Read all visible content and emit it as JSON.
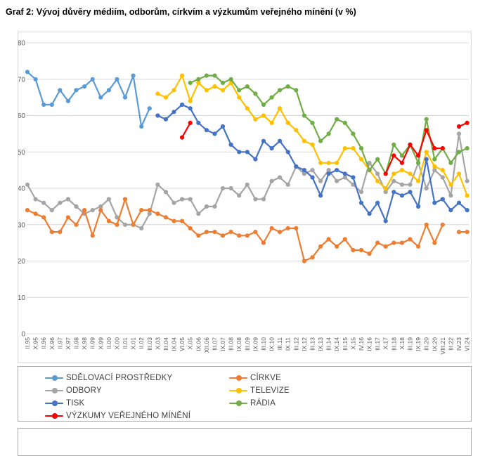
{
  "title": "Graf 2: Vývoj důvěry médiím, odborům, církvím a výzkumům veřejného mínění (v %)",
  "chart_data": {
    "type": "line",
    "title": "Graf 2: Vývoj důvěry médiím, odborům, církvím a výzkumům veřejného mínění (v %)",
    "xlabel": "",
    "ylabel": "",
    "ylim": [
      0,
      80
    ],
    "ytick_step": 10,
    "grid": true,
    "legend_position": "bottom",
    "marker": "circle",
    "categories": [
      "II.95",
      "X.95",
      "II.96",
      "X.96",
      "II.97",
      "X.97",
      "II.98",
      "X.98",
      "II.99",
      "X.99",
      "II.00",
      "X.00",
      "II.01",
      "X.01",
      "II.02",
      "III.03",
      "X.03",
      "III.04",
      "IX.04",
      "VI.05",
      "X.05",
      "IX.06",
      "XII.06",
      "III.07",
      "IX.07",
      "III.08",
      "IX.08",
      "III.09",
      "IX.09",
      "III.10",
      "IX.10",
      "III.11",
      "IX.11",
      "III.12",
      "IX.12",
      "III.13",
      "IX.13",
      "III.14",
      "IX.14",
      "III.15",
      "X.15",
      "IV.16",
      "IX.16",
      "III.17",
      "X.17",
      "III.18",
      "X.18",
      "III.19",
      "IX.19",
      "III.20",
      "IX.20",
      "VIII.21",
      "III.22",
      "IV.23",
      "VI.24"
    ],
    "series": [
      {
        "name": "ODBORY",
        "slug": "odbory",
        "color": "#a5a5a5",
        "legend_order": 2,
        "values": [
          41,
          37,
          36,
          34,
          36,
          37,
          35,
          33,
          34,
          35,
          37,
          32,
          30,
          30,
          29,
          33,
          41,
          39,
          36,
          37,
          37,
          33,
          35,
          35,
          40,
          40,
          38,
          41,
          37,
          37,
          42,
          43,
          41,
          46,
          44,
          45,
          42,
          45,
          42,
          43,
          41,
          39,
          47,
          44,
          39,
          42,
          41,
          41,
          47,
          40,
          45,
          43,
          38,
          55,
          42
        ]
      },
      {
        "name": "SDĚLOVACÍ PROSTŘEDKY",
        "slug": "sdelovaci-prostredky",
        "color": "#5b9bd5",
        "legend_order": 0,
        "values": [
          72,
          70,
          63,
          63,
          67,
          64,
          67,
          68,
          70,
          65,
          67,
          70,
          65,
          71,
          57,
          62,
          null,
          null,
          null,
          null,
          null,
          null,
          null,
          null,
          null,
          null,
          null,
          null,
          null,
          null,
          null,
          null,
          null,
          null,
          null,
          null,
          null,
          null,
          null,
          null,
          null,
          null,
          null,
          null,
          null,
          null,
          null,
          null,
          null,
          null,
          null,
          null,
          null,
          null,
          null
        ]
      },
      {
        "name": "CÍRKVE",
        "slug": "cirkve",
        "color": "#ed7d31",
        "legend_order": 1,
        "values": [
          34,
          33,
          32,
          28,
          28,
          32,
          30,
          34,
          27,
          34,
          31,
          30,
          37,
          30,
          34,
          34,
          33,
          32,
          31,
          31,
          29,
          27,
          28,
          28,
          27,
          28,
          27,
          27,
          28,
          25,
          29,
          28,
          29,
          29,
          20,
          21,
          24,
          26,
          24,
          26,
          23,
          23,
          22,
          25,
          24,
          25,
          25,
          26,
          24,
          30,
          25,
          30,
          null,
          28,
          28
        ]
      },
      {
        "name": "TELEVIZE",
        "slug": "televize",
        "color": "#ffc000",
        "legend_order": 3,
        "values": [
          null,
          null,
          null,
          null,
          null,
          null,
          null,
          null,
          null,
          null,
          null,
          null,
          null,
          null,
          null,
          null,
          66,
          65,
          67,
          71,
          64,
          69,
          67,
          68,
          67,
          69,
          65,
          62,
          59,
          60,
          58,
          62,
          58,
          56,
          53,
          52,
          47,
          47,
          47,
          51,
          51,
          48,
          45,
          42,
          40,
          44,
          45,
          44,
          42,
          50,
          46,
          45,
          41,
          44,
          38
        ]
      },
      {
        "name": "TISK",
        "slug": "tisk",
        "color": "#4472c4",
        "legend_order": 4,
        "values": [
          null,
          null,
          null,
          null,
          null,
          null,
          null,
          null,
          null,
          null,
          null,
          null,
          null,
          null,
          null,
          null,
          60,
          59,
          61,
          63,
          62,
          58,
          56,
          55,
          57,
          52,
          50,
          50,
          48,
          53,
          51,
          53,
          50,
          46,
          45,
          43,
          38,
          44,
          45,
          44,
          43,
          36,
          33,
          36,
          31,
          39,
          38,
          39,
          35,
          48,
          36,
          37,
          34,
          36,
          34
        ]
      },
      {
        "name": "RÁDIA",
        "slug": "radia",
        "color": "#70ad47",
        "legend_order": 5,
        "values": [
          null,
          null,
          null,
          null,
          null,
          null,
          null,
          null,
          null,
          null,
          null,
          null,
          null,
          null,
          null,
          null,
          null,
          null,
          null,
          null,
          69,
          70,
          71,
          71,
          69,
          70,
          67,
          68,
          66,
          63,
          65,
          67,
          68,
          67,
          60,
          58,
          53,
          55,
          59,
          58,
          55,
          51,
          45,
          48,
          44,
          52,
          49,
          52,
          47,
          59,
          48,
          51,
          47,
          50,
          51
        ]
      },
      {
        "name": "VÝZKUMY VEŘEJNÉHO MÍNĚNÍ",
        "slug": "vyzkumy-verejneho-mineni",
        "color": "#ff0000",
        "legend_order": 6,
        "values": [
          null,
          null,
          null,
          null,
          null,
          null,
          null,
          null,
          null,
          null,
          null,
          null,
          null,
          null,
          null,
          null,
          null,
          null,
          null,
          54,
          58,
          null,
          null,
          null,
          null,
          null,
          null,
          null,
          null,
          null,
          null,
          null,
          null,
          null,
          null,
          null,
          null,
          null,
          null,
          null,
          null,
          null,
          null,
          null,
          44,
          49,
          47,
          52,
          49,
          56,
          51,
          51,
          null,
          57,
          58
        ]
      }
    ],
    "yticks": [
      0,
      10,
      20,
      30,
      40,
      50,
      60,
      70,
      80
    ]
  }
}
